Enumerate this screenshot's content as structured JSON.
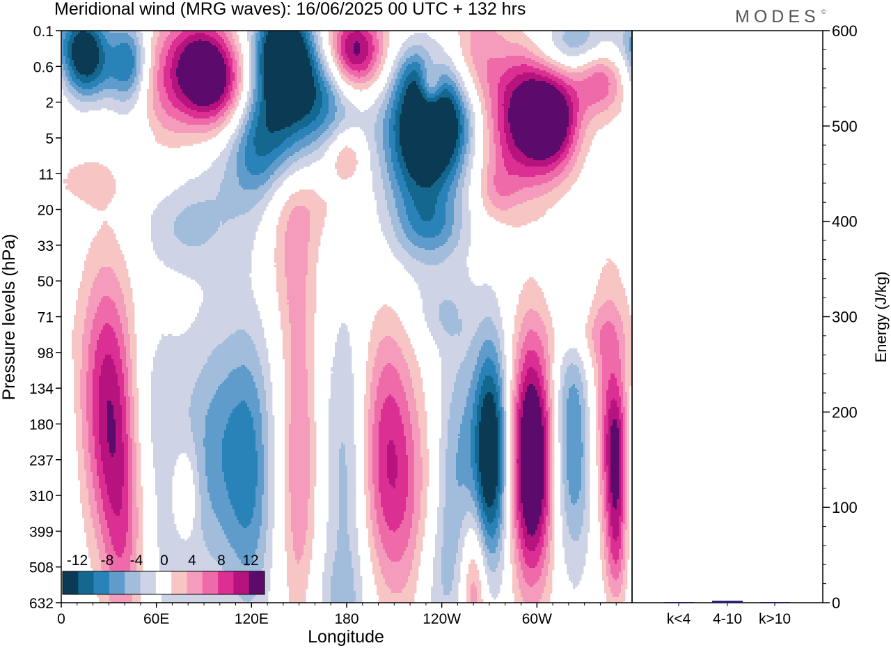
{
  "title": "Meridional wind (MRG waves):  16/06/2025  00 UTC  + 132 hrs",
  "brand": "MODES",
  "brand_mark": "©",
  "colors": {
    "neg6": "#0b3b54",
    "neg5": "#14678f",
    "neg4": "#2a83b8",
    "neg3": "#5f9ccb",
    "neg2": "#a2bcdc",
    "neg1": "#cfd3e6",
    "zero": "#ffffff",
    "pos1": "#f7c6c4",
    "pos2": "#f59bbb",
    "pos3": "#ef6aa8",
    "pos4": "#dc2f93",
    "pos5": "#b7137f",
    "pos6": "#5c0a6c",
    "energy_bar": "#1a1a6e"
  },
  "chart_data": [
    {
      "type": "heatmap",
      "title": "Meridional wind (MRG waves):  16/06/2025  00 UTC  + 132 hrs",
      "xlabel": "Longitude",
      "ylabel": "Pressure levels (hPa)",
      "xticks": [
        "0",
        "60E",
        "120E",
        "180",
        "120W",
        "60W"
      ],
      "xtick_degrees": [
        0,
        60,
        120,
        180,
        240,
        300
      ],
      "xlim": [
        0,
        360
      ],
      "yticks": [
        "0.1",
        "0.6",
        "2",
        "5",
        "11",
        "20",
        "33",
        "50",
        "71",
        "98",
        "134",
        "180",
        "237",
        "310",
        "399",
        "508",
        "632"
      ],
      "colorbar": {
        "labels": [
          "-12",
          "-8",
          "-4",
          "0",
          "4",
          "8",
          "12"
        ],
        "levels": [
          -14,
          -12,
          -10,
          -8,
          -6,
          -4,
          -2,
          2,
          4,
          6,
          8,
          10,
          12,
          14
        ]
      },
      "features": [
        {
          "lon": 15,
          "level": 0.5,
          "value": -14,
          "wl": 11,
          "wv": 0.8
        },
        {
          "lon": 43,
          "level": 0.9,
          "value": -12,
          "wl": 9,
          "wv": 0.9
        },
        {
          "lon": 88,
          "level": 0.8,
          "value": 9,
          "wl": 14,
          "wv": 0.9
        },
        {
          "lon": 60,
          "level": 1.6,
          "value": 6,
          "wl": 22,
          "wv": 1.5
        },
        {
          "lon": 98,
          "level": 1.6,
          "value": 10,
          "wl": 16,
          "wv": 0.9
        },
        {
          "lon": 20,
          "level": 1.4,
          "value": -4,
          "wl": 14,
          "wv": 0.6
        },
        {
          "lon": 140,
          "level": 0.6,
          "value": -14,
          "wl": 12,
          "wv": 1.0
        },
        {
          "lon": 140,
          "level": 2.2,
          "value": -8,
          "wl": 16,
          "wv": 1.8
        },
        {
          "lon": 122,
          "level": 3.2,
          "value": -6,
          "wl": 12,
          "wv": 1.2
        },
        {
          "lon": 185,
          "level": 0.6,
          "value": 14,
          "wl": 13,
          "wv": 0.8
        },
        {
          "lon": 222,
          "level": 1.2,
          "value": -4,
          "wl": 9,
          "wv": 0.6
        },
        {
          "lon": 233,
          "level": 1.6,
          "value": 8,
          "wl": 5,
          "wv": 0.5
        },
        {
          "lon": 165,
          "level": 1.8,
          "value": -8,
          "wl": 16,
          "wv": 1.0
        },
        {
          "lon": 238,
          "level": 2.5,
          "value": -14,
          "wl": 20,
          "wv": 1.0
        },
        {
          "lon": 228,
          "level": 4.0,
          "value": -10,
          "wl": 18,
          "wv": 1.8
        },
        {
          "lon": 262,
          "level": 1.2,
          "value": 6,
          "wl": 12,
          "wv": 1.6
        },
        {
          "lon": 290,
          "level": 2.0,
          "value": 10,
          "wl": 14,
          "wv": 1.2
        },
        {
          "lon": 310,
          "level": 2.5,
          "value": 14,
          "wl": 12,
          "wv": 1.0
        },
        {
          "lon": 285,
          "level": 3.6,
          "value": 5,
          "wl": 18,
          "wv": 1.2
        },
        {
          "lon": 330,
          "level": 0.4,
          "value": -8,
          "wl": 20,
          "wv": 0.6
        },
        {
          "lon": 340,
          "level": 1.2,
          "value": 9,
          "wl": 12,
          "wv": 0.8
        },
        {
          "lon": 150,
          "level": 4.8,
          "value": 3,
          "wl": 22,
          "wv": 0.8
        },
        {
          "lon": 180,
          "level": 3.5,
          "value": 5,
          "wl": 8,
          "wv": 0.5
        },
        {
          "lon": 145,
          "level": 6.0,
          "value": 4,
          "wl": 12,
          "wv": 1.6
        },
        {
          "lon": 45,
          "level": 3.0,
          "value": -3,
          "wl": 12,
          "wv": 0.8
        },
        {
          "lon": 100,
          "level": 4.5,
          "value": -3,
          "wl": 24,
          "wv": 1.5
        },
        {
          "lon": 75,
          "level": 5.5,
          "value": -3,
          "wl": 18,
          "wv": 0.8
        },
        {
          "lon": 15,
          "level": 4.2,
          "value": 2.5,
          "wl": 18,
          "wv": 0.5
        },
        {
          "lon": 235,
          "level": 5.5,
          "value": -2.5,
          "wl": 14,
          "wv": 0.5
        },
        {
          "lon": 275,
          "level": 4.5,
          "value": 2.5,
          "wl": 8,
          "wv": 0.5
        },
        {
          "lon": 240,
          "level": 8.0,
          "value": -2.5,
          "wl": 12,
          "wv": 0.6
        },
        {
          "lon": 28,
          "level": 10.0,
          "value": 9,
          "wl": 12,
          "wv": 2.6
        },
        {
          "lon": 36,
          "level": 12.5,
          "value": 6,
          "wl": 10,
          "wv": 2.5
        },
        {
          "lon": 0,
          "level": 12.0,
          "value": -3,
          "wl": 6,
          "wv": 2.0
        },
        {
          "lon": 60,
          "level": 10.5,
          "value": -3,
          "wl": 14,
          "wv": 2.0
        },
        {
          "lon": 78,
          "level": 13.0,
          "value": 5,
          "wl": 6,
          "wv": 1.0
        },
        {
          "lon": 100,
          "level": 11.8,
          "value": -7,
          "wl": 16,
          "wv": 2.6
        },
        {
          "lon": 120,
          "level": 12.5,
          "value": -6,
          "wl": 10,
          "wv": 3.0
        },
        {
          "lon": 72,
          "level": 15.0,
          "value": -3,
          "wl": 10,
          "wv": 2.0
        },
        {
          "lon": 150,
          "level": 12.0,
          "value": 6,
          "wl": 8,
          "wv": 3.5
        },
        {
          "lon": 180,
          "level": 12.5,
          "value": -5,
          "wl": 10,
          "wv": 3.5
        },
        {
          "lon": 205,
          "level": 11.8,
          "value": 9,
          "wl": 12,
          "wv": 2.6
        },
        {
          "lon": 222,
          "level": 13.5,
          "value": 4,
          "wl": 12,
          "wv": 2.5
        },
        {
          "lon": 250,
          "level": 12.5,
          "value": -6,
          "wl": 10,
          "wv": 3.0
        },
        {
          "lon": 271,
          "level": 11.8,
          "value": -16,
          "wl": 8,
          "wv": 2.2
        },
        {
          "lon": 297,
          "level": 12.0,
          "value": 18,
          "wl": 10,
          "wv": 2.4
        },
        {
          "lon": 323,
          "level": 11.5,
          "value": -9,
          "wl": 10,
          "wv": 2.4
        },
        {
          "lon": 345,
          "level": 10.5,
          "value": 7,
          "wl": 10,
          "wv": 2.6
        },
        {
          "lon": 350,
          "level": 12.0,
          "value": 9,
          "wl": 5,
          "wv": 1.4
        },
        {
          "lon": 260,
          "level": 15.5,
          "value": 8,
          "wl": 6,
          "wv": 1.6
        },
        {
          "lon": 350,
          "level": 14.5,
          "value": 6,
          "wl": 5,
          "wv": 1.2
        },
        {
          "lon": 330,
          "level": 8.5,
          "value": 3,
          "wl": 16,
          "wv": 0.6
        },
        {
          "lon": 40,
          "level": 15.0,
          "value": 3,
          "wl": 8,
          "wv": 1.8
        },
        {
          "lon": 175,
          "level": 16.0,
          "value": -2.5,
          "wl": 14,
          "wv": 1.0
        },
        {
          "lon": 235,
          "level": 15.5,
          "value": -3,
          "wl": 10,
          "wv": 1.6
        }
      ]
    },
    {
      "type": "bar",
      "ylabel": "Energy (J/kg)",
      "ylim": [
        0,
        600
      ],
      "yticks": [
        0,
        100,
        200,
        300,
        400,
        500,
        600
      ],
      "categories": [
        "k<4",
        "4-10",
        "k>10"
      ],
      "values": [
        0.3,
        2,
        0.3
      ]
    }
  ]
}
